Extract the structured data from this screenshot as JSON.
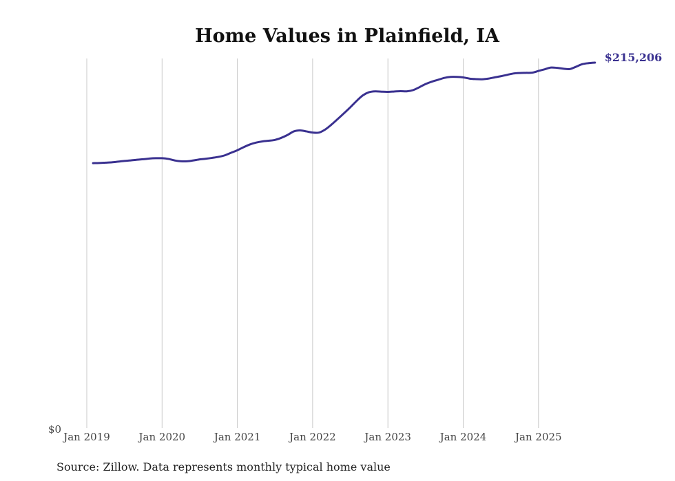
{
  "chart_data": {
    "type": "line",
    "title": "Home Values in Plainfield, IA",
    "xlabel": "",
    "ylabel": "",
    "y_zero_label": "$0",
    "ylim": [
      0,
      215206
    ],
    "x_tick_labels": [
      "Jan 2019",
      "Jan 2020",
      "Jan 2021",
      "Jan 2022",
      "Jan 2023",
      "Jan 2024",
      "Jan 2025"
    ],
    "grid": true,
    "series": [
      {
        "name": "Typical home value",
        "color": "#3a3190",
        "start": "Feb 2019",
        "end": "Oct 2025",
        "end_label": "$215,206",
        "values": [
          156000,
          156100,
          156300,
          156500,
          156900,
          157300,
          157600,
          158000,
          158300,
          158700,
          158900,
          158900,
          158500,
          157600,
          157100,
          157100,
          157600,
          158200,
          158600,
          159100,
          159700,
          160600,
          162100,
          163600,
          165400,
          167000,
          168100,
          168800,
          169200,
          169700,
          170900,
          172600,
          174700,
          175300,
          174700,
          174000,
          174000,
          175800,
          178700,
          182000,
          185400,
          188900,
          192600,
          195900,
          197800,
          198300,
          198100,
          198000,
          198200,
          198400,
          198300,
          199000,
          200700,
          202600,
          204000,
          205100,
          206200,
          206800,
          206800,
          206500,
          205800,
          205500,
          205400,
          205800,
          206500,
          207200,
          208000,
          208800,
          209100,
          209200,
          209300,
          210300,
          211300,
          212300,
          212100,
          211600,
          211400,
          212800,
          214300,
          214900,
          215206
        ]
      }
    ],
    "source": "Source: Zillow. Data represents monthly typical home value"
  }
}
